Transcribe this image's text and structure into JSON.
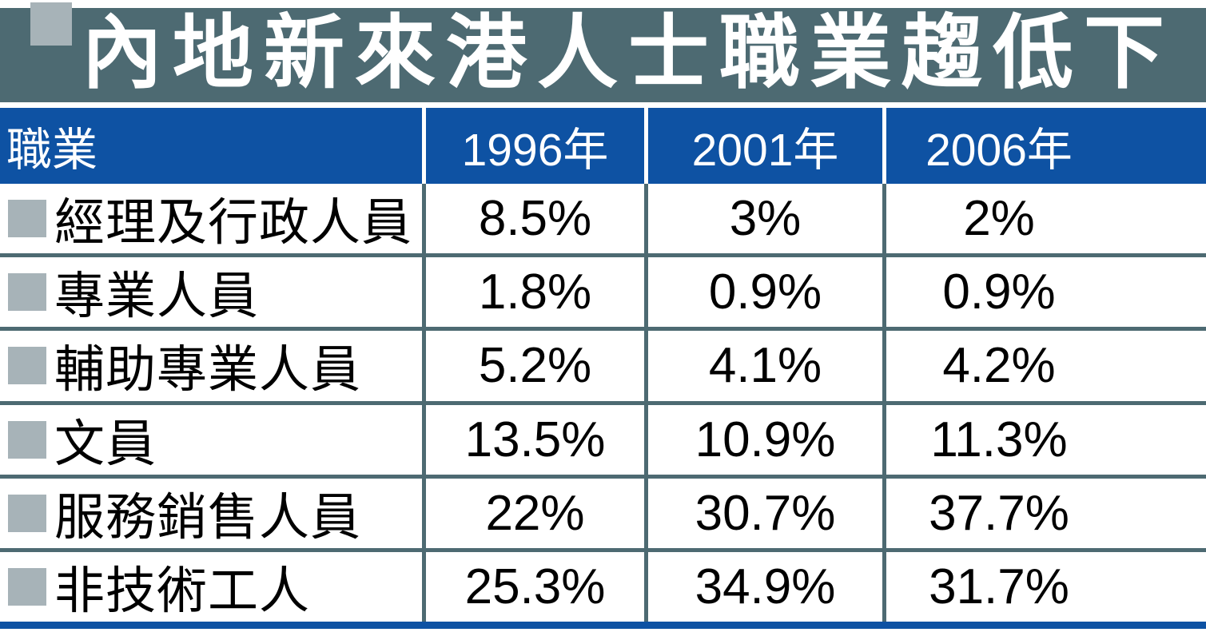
{
  "title": "內地新來港人士職業趨低下",
  "colors": {
    "band": "#4d6a72",
    "blue": "#0e52a3",
    "bullet": "#a7b3b8",
    "grid": "#4d6a72",
    "ink": "#000000",
    "paper": "#ffffff"
  },
  "chart_data": {
    "type": "table",
    "title": "內地新來港人士職業趨低下",
    "columns": [
      "職業",
      "1996年",
      "2001年",
      "2006年"
    ],
    "rows": [
      {
        "label": "經理及行政人員",
        "values": [
          "8.5%",
          "3%",
          "2%"
        ]
      },
      {
        "label": "專業人員",
        "values": [
          "1.8%",
          "0.9%",
          "0.9%"
        ]
      },
      {
        "label": "輔助專業人員",
        "values": [
          "5.2%",
          "4.1%",
          "4.2%"
        ]
      },
      {
        "label": "文員",
        "values": [
          "13.5%",
          "10.9%",
          "11.3%"
        ]
      },
      {
        "label": "服務銷售人員",
        "values": [
          "22%",
          "30.7%",
          "37.7%"
        ]
      },
      {
        "label": "非技術工人",
        "values": [
          "25.3%",
          "34.9%",
          "31.7%"
        ]
      }
    ],
    "layout": {
      "legend": "none",
      "grid": "on",
      "header_fill": "#0e52a3",
      "note": "newspaper infographic table, values are percentages of new-arrival occupations by census year"
    }
  }
}
